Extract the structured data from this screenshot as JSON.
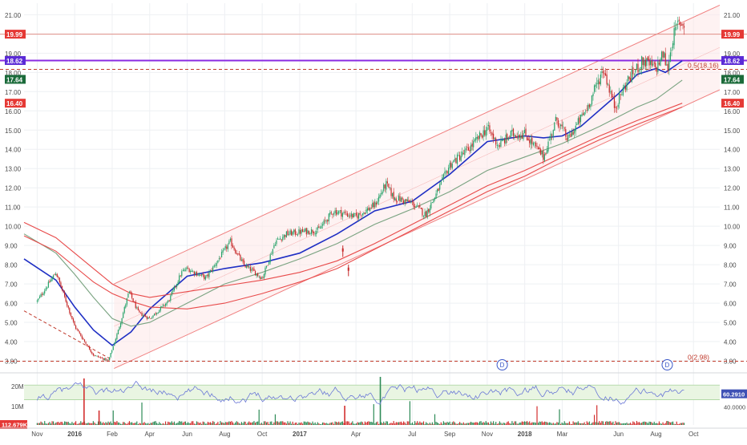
{
  "colors": {
    "background": "#ffffff",
    "grid": "#eef0f3",
    "axis_text": "#4a4a4a",
    "up_candle": "#26a269",
    "down_candle": "#c62828",
    "ma_fast": "#1f2fc4",
    "ma_mid": "#7aa381",
    "ma_slow": "#e84a4a",
    "channel_line": "#f08080",
    "channel_fill": "#fde7e7",
    "fib_line": "#c0392b",
    "resistance_line": "#e08f86",
    "purple_line": "#8a2be2",
    "rsi_line": "#6b78d6",
    "rsi_band": "#e9f5e2",
    "volume_up": "#2e8b57",
    "volume_down": "#d32f2f"
  },
  "chart_data": [
    {
      "type": "candlestick",
      "ylim": [
        2.5,
        21.6
      ],
      "y_ticks": [
        "3.00",
        "4.00",
        "5.00",
        "6.00",
        "7.00",
        "8.00",
        "9.00",
        "10.00",
        "11.00",
        "12.00",
        "13.00",
        "14.00",
        "15.00",
        "16.00",
        "17.00",
        "18.00",
        "19.00",
        "20.00",
        "21.00"
      ],
      "x_ticks": [
        "Nov",
        "2016",
        "Feb",
        "Apr",
        "Jun",
        "Aug",
        "Oct",
        "2017",
        "Apr",
        "Jul",
        "Sep",
        "Nov",
        "2018",
        "Mar",
        "Jun",
        "Aug",
        "Oct"
      ],
      "x_tick_months": [
        0,
        2,
        4,
        6,
        8,
        10,
        12,
        14,
        17,
        20,
        22,
        24,
        26,
        28,
        31,
        33,
        35
      ],
      "x_range_months": [
        -0.7,
        36.4
      ],
      "price_path": [
        [
          0,
          6.1
        ],
        [
          1,
          7.6
        ],
        [
          2,
          4.8
        ],
        [
          3,
          3.3
        ],
        [
          3.8,
          3.0
        ],
        [
          4.3,
          4.5
        ],
        [
          4.9,
          6.6
        ],
        [
          5.4,
          5.5
        ],
        [
          6,
          5.2
        ],
        [
          7,
          6.1
        ],
        [
          7.7,
          7.6
        ],
        [
          8,
          7.8
        ],
        [
          9,
          7.3
        ],
        [
          10.3,
          9.2
        ],
        [
          11,
          8.0
        ],
        [
          11.6,
          7.6
        ],
        [
          12,
          7.3
        ],
        [
          12.7,
          9.2
        ],
        [
          13.3,
          9.6
        ],
        [
          14,
          9.7
        ],
        [
          15,
          9.8
        ],
        [
          15.8,
          10.8
        ],
        [
          17,
          10.5
        ],
        [
          18,
          11.1
        ],
        [
          18.6,
          12.2
        ],
        [
          19,
          11.5
        ],
        [
          20,
          11.2
        ],
        [
          20.7,
          10.6
        ],
        [
          21.3,
          11.7
        ],
        [
          22,
          13.2
        ],
        [
          23,
          14.0
        ],
        [
          24,
          15.1
        ],
        [
          24.6,
          14.2
        ],
        [
          25.3,
          14.8
        ],
        [
          26,
          14.8
        ],
        [
          27,
          13.6
        ],
        [
          27.7,
          15.6
        ],
        [
          28.3,
          14.5
        ],
        [
          29.3,
          16.1
        ],
        [
          30.2,
          18.2
        ],
        [
          30.8,
          16.2
        ],
        [
          31.5,
          17.6
        ],
        [
          32.3,
          18.6
        ],
        [
          33,
          18.2
        ],
        [
          33.4,
          19.0
        ],
        [
          33.6,
          18.1
        ],
        [
          33.9,
          19.8
        ],
        [
          34.2,
          20.6
        ],
        [
          34.5,
          20.5
        ]
      ],
      "gap_events": [
        [
          16.3,
          8.7
        ],
        [
          16.6,
          7.7
        ]
      ],
      "moving_averages": [
        {
          "color_key": "ma_fast",
          "points": [
            [
              -0.7,
              8.3
            ],
            [
              1,
              7.2
            ],
            [
              2,
              5.8
            ],
            [
              3,
              4.6
            ],
            [
              4,
              3.8
            ],
            [
              5,
              4.5
            ],
            [
              6,
              5.7
            ],
            [
              8,
              7.4
            ],
            [
              10,
              7.8
            ],
            [
              12,
              8.1
            ],
            [
              14,
              8.6
            ],
            [
              16,
              9.6
            ],
            [
              18,
              10.8
            ],
            [
              20,
              11.3
            ],
            [
              22,
              12.7
            ],
            [
              24,
              14.4
            ],
            [
              26,
              14.7
            ],
            [
              27,
              14.6
            ],
            [
              28,
              14.7
            ],
            [
              29,
              15.2
            ],
            [
              31,
              16.9
            ],
            [
              32,
              17.9
            ],
            [
              33,
              18.2
            ],
            [
              33.5,
              18.0
            ],
            [
              34.4,
              18.6
            ]
          ]
        },
        {
          "color_key": "ma_mid",
          "points": [
            [
              -0.7,
              9.6
            ],
            [
              1,
              8.6
            ],
            [
              2,
              7.5
            ],
            [
              3,
              6.3
            ],
            [
              4,
              5.2
            ],
            [
              5,
              4.8
            ],
            [
              6,
              5.0
            ],
            [
              8,
              6.0
            ],
            [
              10,
              7.0
            ],
            [
              12,
              7.6
            ],
            [
              14,
              8.3
            ],
            [
              16,
              9.1
            ],
            [
              18,
              10.1
            ],
            [
              20,
              10.9
            ],
            [
              22,
              11.8
            ],
            [
              24,
              12.9
            ],
            [
              26,
              13.6
            ],
            [
              28,
              14.3
            ],
            [
              30,
              15.2
            ],
            [
              32,
              16.2
            ],
            [
              33,
              16.6
            ],
            [
              34.4,
              17.6
            ]
          ]
        },
        {
          "color_key": "ma_slow",
          "points": [
            [
              -0.7,
              10.2
            ],
            [
              1,
              9.4
            ],
            [
              2,
              8.6
            ],
            [
              3,
              7.8
            ],
            [
              4,
              7.0
            ],
            [
              5,
              6.5
            ],
            [
              6,
              6.3
            ],
            [
              8,
              6.6
            ],
            [
              10,
              6.9
            ],
            [
              12,
              7.2
            ],
            [
              14,
              7.6
            ],
            [
              16,
              8.2
            ],
            [
              18,
              9.1
            ],
            [
              20,
              10.1
            ],
            [
              22,
              11.1
            ],
            [
              24,
              12.1
            ],
            [
              26,
              12.9
            ],
            [
              28,
              13.8
            ],
            [
              30,
              14.7
            ],
            [
              32,
              15.5
            ],
            [
              34.4,
              16.4
            ]
          ]
        },
        {
          "color_key": "ma_slow",
          "points": [
            [
              -0.7,
              9.5
            ],
            [
              1,
              8.7
            ],
            [
              2,
              7.9
            ],
            [
              3,
              7.1
            ],
            [
              4,
              6.5
            ],
            [
              5,
              6.1
            ],
            [
              6,
              5.8
            ],
            [
              8,
              5.7
            ],
            [
              10,
              6.0
            ],
            [
              12,
              6.5
            ],
            [
              14,
              7.1
            ],
            [
              16,
              7.8
            ],
            [
              18,
              8.8
            ],
            [
              20,
              9.8
            ],
            [
              22,
              10.8
            ],
            [
              24,
              11.8
            ],
            [
              26,
              12.6
            ],
            [
              28,
              13.6
            ],
            [
              30,
              14.5
            ],
            [
              32,
              15.3
            ],
            [
              34.4,
              16.2
            ]
          ]
        }
      ],
      "channel": {
        "lower_start": [
          4.1,
          2.6
        ],
        "lower_end": [
          36.4,
          17.1
        ],
        "upper_start": [
          4.1,
          7.0
        ],
        "upper_end": [
          36.4,
          21.5
        ]
      },
      "dashed_trend": [
        [
          -0.7,
          5.6
        ],
        [
          3.9,
          3.1
        ]
      ],
      "horizontal_levels": [
        {
          "price": 19.99,
          "color_key": "resistance_line",
          "style": "solid",
          "badge": "19.99",
          "badge_bg": "#e53935"
        },
        {
          "price": 18.62,
          "color_key": "purple_line",
          "style": "solid-thick",
          "badge": "18.62",
          "badge_bg": "#5b2bd6"
        },
        {
          "price": 18.16,
          "color_key": "fib_line",
          "style": "dashed",
          "label": "0.5(18.16)"
        },
        {
          "price": 2.98,
          "color_key": "fib_line",
          "style": "dashed",
          "label": "0(2.98)"
        }
      ],
      "extra_badges": [
        {
          "price": 17.64,
          "text": "17.64",
          "bg": "#1b6b3a"
        },
        {
          "price": 16.4,
          "text": "16.40",
          "bg": "#e53935"
        }
      ],
      "dividend_markers": [
        {
          "month": 24.8,
          "label": "D"
        },
        {
          "month": 33.6,
          "label": "D"
        }
      ]
    },
    {
      "type": "rsi_volume",
      "rsi_ticks": [
        "60.0000",
        "40.0000"
      ],
      "rsi_band": [
        50,
        70
      ],
      "rsi_current": "60.2910",
      "volume_ticks": [
        "20M",
        "10M"
      ],
      "volume_current": "112.679K",
      "rsi_walk_seed": 7
    }
  ]
}
